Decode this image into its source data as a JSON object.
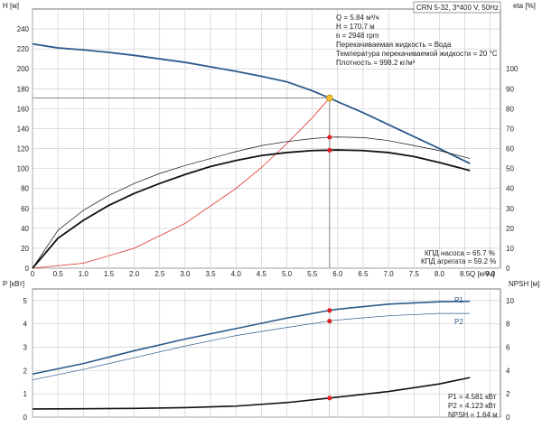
{
  "header": {
    "pump_title": "CRN 5-32, 3*400 V, 50Hz"
  },
  "info": {
    "lines": [
      "Q = 5.84 м³/ч",
      "H = 170.7 м",
      "n = 2948 rpm",
      "Перекачиваемая жидкость = Вода",
      "Температура перекачиваемой жидкости = 20 °C",
      "Плотность = 998.2 кг/м³"
    ],
    "efficiency": [
      "КПД насоса = 65.7 %",
      "КПД агрегата = 59.2 %"
    ],
    "power": [
      "P1 = 4.581 кВт",
      "P2 = 4.123 кВт",
      "NPSH = 1.64 м"
    ]
  },
  "colors": {
    "head_curve": "#2b5a8c",
    "power_curve": "#2b5a8c",
    "eta_curve": "#111111",
    "system_curve": "#e0302a",
    "duty_marker": "#f2c230",
    "duty_line": "#7a7a7a",
    "marker": "#e02020"
  },
  "chart_data": [
    {
      "type": "line",
      "title": "",
      "xlabel": "Q [м³/ч]",
      "ylabel": "H [м]",
      "y2label": "eta [%]",
      "xlim": [
        0,
        9.2
      ],
      "ylim": [
        0,
        260
      ],
      "y2lim": [
        0,
        130
      ],
      "x_ticks": [
        "0",
        "0.5",
        "1.0",
        "1.5",
        "2.0",
        "2.5",
        "3.0",
        "3.5",
        "4.0",
        "4.5",
        "5.0",
        "5.5",
        "6.0",
        "6.5",
        "7.0",
        "7.5",
        "8.0",
        "8.5",
        "9.0"
      ],
      "y_ticks": [
        "0",
        "20",
        "40",
        "60",
        "80",
        "100",
        "120",
        "140",
        "160",
        "180",
        "200",
        "220",
        "240"
      ],
      "y2_ticks": [
        "0",
        "10",
        "20",
        "30",
        "40",
        "50",
        "60",
        "70",
        "80",
        "90",
        "100"
      ],
      "grid": true,
      "series": [
        {
          "key": "head",
          "axis": "left",
          "x": [
            0,
            0.5,
            1,
            1.5,
            2,
            2.5,
            3,
            3.5,
            4,
            4.5,
            5,
            5.5,
            5.84,
            6,
            6.5,
            7,
            7.5,
            8,
            8.6
          ],
          "y": [
            225,
            221,
            219,
            216.5,
            213.5,
            210,
            206.5,
            202,
            197.5,
            192.5,
            187,
            178,
            170.7,
            167,
            156,
            144,
            132,
            120,
            105
          ]
        },
        {
          "key": "system",
          "axis": "left",
          "x": [
            0,
            1,
            2,
            3,
            4,
            4.5,
            5,
            5.5,
            5.84
          ],
          "y": [
            0,
            5,
            20,
            45,
            80,
            101,
            125,
            151,
            170.7
          ]
        },
        {
          "key": "eta_pump",
          "axis": "right",
          "x": [
            0,
            0.5,
            1,
            1.5,
            2,
            2.5,
            3,
            3.5,
            4,
            4.5,
            5,
            5.5,
            5.84,
            6,
            6.5,
            7,
            7.5,
            8,
            8.6
          ],
          "y": [
            0,
            19,
            29,
            36.5,
            42.5,
            47.5,
            51.5,
            55,
            58.5,
            61.5,
            63.5,
            65,
            65.7,
            65.8,
            65.5,
            64,
            61.5,
            59,
            55
          ]
        },
        {
          "key": "eta_unit",
          "axis": "right",
          "x": [
            0,
            0.5,
            1,
            1.5,
            2,
            2.5,
            3,
            3.5,
            4,
            4.5,
            5,
            5.5,
            5.84,
            6,
            6.5,
            7,
            7.5,
            8,
            8.6
          ],
          "y": [
            0,
            15,
            24,
            31.5,
            37.5,
            42.5,
            47,
            51,
            54,
            56.5,
            58,
            59,
            59.2,
            59.3,
            59,
            58,
            56,
            53,
            49
          ]
        }
      ],
      "duty_point": {
        "x": 5.84,
        "y": 170.7,
        "eta_pump": 65.7,
        "eta_unit": 59.2
      }
    },
    {
      "type": "line",
      "title": "",
      "xlabel": "",
      "ylabel": "P [кВт]",
      "y2label": "NPSH [м]",
      "xlim": [
        0,
        9.2
      ],
      "ylim": [
        0,
        5.5
      ],
      "y2lim": [
        0,
        11
      ],
      "y_ticks": [
        "0",
        "1",
        "2",
        "3",
        "4",
        "5"
      ],
      "y2_ticks": [
        "0",
        "2",
        "4",
        "6",
        "8",
        "10"
      ],
      "grid": true,
      "series": [
        {
          "key": "p1",
          "name": "P1",
          "axis": "left",
          "x": [
            0,
            1,
            2,
            3,
            4,
            5,
            5.84,
            6,
            7,
            8,
            8.6
          ],
          "y": [
            1.85,
            2.3,
            2.85,
            3.35,
            3.8,
            4.25,
            4.581,
            4.63,
            4.85,
            4.95,
            4.97
          ]
        },
        {
          "key": "p2",
          "name": "P2",
          "axis": "left",
          "x": [
            0,
            1,
            2,
            3,
            4,
            5,
            5.84,
            6,
            7,
            8,
            8.6
          ],
          "y": [
            1.6,
            2.05,
            2.55,
            3.05,
            3.5,
            3.85,
            4.123,
            4.17,
            4.35,
            4.45,
            4.45
          ]
        },
        {
          "key": "npsh",
          "name": "NPSH",
          "axis": "right",
          "x": [
            0,
            1,
            2,
            3,
            4,
            5,
            5.84,
            6,
            7,
            8,
            8.6
          ],
          "y": [
            0.7,
            0.72,
            0.75,
            0.82,
            0.95,
            1.25,
            1.64,
            1.72,
            2.2,
            2.85,
            3.4
          ]
        }
      ],
      "duty_point": {
        "x": 5.84,
        "p1": 4.581,
        "p2": 4.123,
        "npsh": 1.64
      }
    }
  ]
}
